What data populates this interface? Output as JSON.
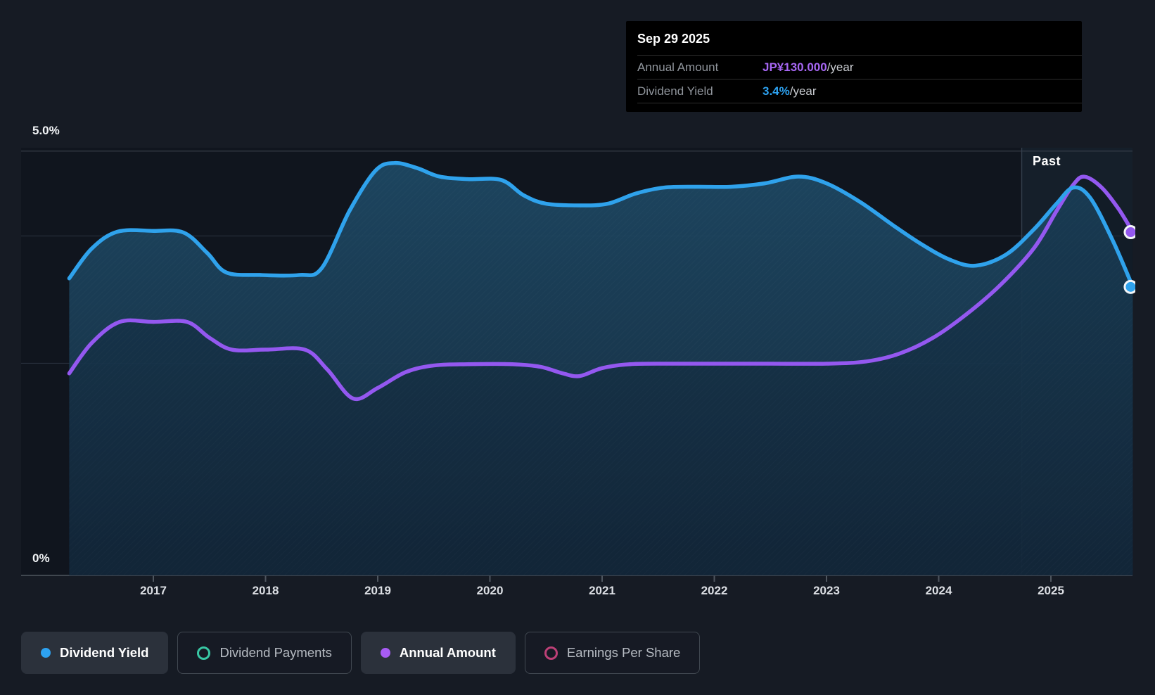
{
  "tooltip": {
    "date": "Sep 29 2025",
    "rows": [
      {
        "label": "Annual Amount",
        "value": "JP¥130.000",
        "suffix": "/year",
        "value_color": "#a767f4"
      },
      {
        "label": "Dividend Yield",
        "value": "3.4%",
        "suffix": "/year",
        "value_color": "#2da2f1"
      }
    ]
  },
  "axis": {
    "y_top_label": "5.0%",
    "y_bottom_label": "0%",
    "years": [
      "2017",
      "2018",
      "2019",
      "2020",
      "2021",
      "2022",
      "2023",
      "2024",
      "2025"
    ]
  },
  "past_label": "Past",
  "legend": [
    {
      "label": "Dividend Yield",
      "marker": "filled",
      "color": "#2da2f1",
      "active": true
    },
    {
      "label": "Dividend Payments",
      "marker": "ring",
      "color": "#38c7a4",
      "active": false
    },
    {
      "label": "Annual Amount",
      "marker": "filled",
      "color": "#a85cf5",
      "active": true
    },
    {
      "label": "Earnings Per Share",
      "marker": "ring",
      "color": "#bd4077",
      "active": false
    }
  ],
  "colors": {
    "background": "#161b24",
    "plot_background": "#10151e",
    "past_highlight": "rgba(56,90,120,0.14)",
    "blue_line": "#2fa2ec",
    "purple_line": "#9458f0",
    "fill_top": "#1e4a66",
    "fill_bottom": "#152c40",
    "gridline_major": "#3a414c",
    "gridline_minor": "#28303c",
    "baseline": "#4f565f"
  },
  "chart_data": {
    "type": "area",
    "x_axis": {
      "tick_years": [
        2017,
        2018,
        2019,
        2020,
        2021,
        2022,
        2023,
        2024,
        2025
      ],
      "x_range": [
        2015.8,
        2025.75
      ]
    },
    "y_axis": {
      "unit": "%",
      "range": [
        0,
        5
      ],
      "labeled_ticks": [
        {
          "value": 5.0,
          "label": "5.0%"
        },
        {
          "value": 0,
          "label": "0%"
        }
      ],
      "gridlines_pct": [
        5.0,
        4.0,
        2.5,
        0
      ]
    },
    "past_divider_year": 2024.74,
    "legend_position": "bottom",
    "series": [
      {
        "name": "Dividend Yield",
        "unit": "%",
        "axis": "left",
        "color": "#2fa2ec",
        "style": "line-with-area-fill",
        "points": [
          [
            2016.25,
            3.5
          ],
          [
            2016.45,
            3.85
          ],
          [
            2016.68,
            4.05
          ],
          [
            2017.0,
            4.06
          ],
          [
            2017.27,
            4.04
          ],
          [
            2017.48,
            3.8
          ],
          [
            2017.65,
            3.57
          ],
          [
            2017.95,
            3.54
          ],
          [
            2018.3,
            3.54
          ],
          [
            2018.5,
            3.62
          ],
          [
            2018.75,
            4.3
          ],
          [
            2018.98,
            4.77
          ],
          [
            2019.15,
            4.86
          ],
          [
            2019.35,
            4.8
          ],
          [
            2019.55,
            4.7
          ],
          [
            2019.8,
            4.67
          ],
          [
            2020.1,
            4.66
          ],
          [
            2020.3,
            4.48
          ],
          [
            2020.5,
            4.38
          ],
          [
            2020.8,
            4.36
          ],
          [
            2021.05,
            4.38
          ],
          [
            2021.3,
            4.5
          ],
          [
            2021.55,
            4.57
          ],
          [
            2021.85,
            4.58
          ],
          [
            2022.15,
            4.58
          ],
          [
            2022.45,
            4.62
          ],
          [
            2022.75,
            4.7
          ],
          [
            2023.0,
            4.62
          ],
          [
            2023.3,
            4.4
          ],
          [
            2023.6,
            4.12
          ],
          [
            2023.85,
            3.9
          ],
          [
            2024.1,
            3.72
          ],
          [
            2024.33,
            3.65
          ],
          [
            2024.6,
            3.78
          ],
          [
            2024.85,
            4.08
          ],
          [
            2025.05,
            4.38
          ],
          [
            2025.2,
            4.57
          ],
          [
            2025.35,
            4.45
          ],
          [
            2025.55,
            3.95
          ],
          [
            2025.73,
            3.4
          ]
        ]
      },
      {
        "name": "Annual Amount",
        "unit": "JP¥/year",
        "axis": "hidden-right",
        "color": "#9458f0",
        "style": "line",
        "scale_note": "hidden axis; JP¥130 at end aligns with 4.05% on left axis",
        "points": [
          [
            2016.25,
            76.5
          ],
          [
            2016.45,
            88
          ],
          [
            2016.7,
            96
          ],
          [
            2017.0,
            96
          ],
          [
            2017.3,
            96
          ],
          [
            2017.5,
            90
          ],
          [
            2017.7,
            85.5
          ],
          [
            2018.0,
            85.5
          ],
          [
            2018.35,
            85.5
          ],
          [
            2018.55,
            78
          ],
          [
            2018.78,
            67
          ],
          [
            2019.0,
            71
          ],
          [
            2019.25,
            77
          ],
          [
            2019.5,
            79.5
          ],
          [
            2019.8,
            80
          ],
          [
            2020.2,
            80
          ],
          [
            2020.45,
            79
          ],
          [
            2020.65,
            76.5
          ],
          [
            2020.8,
            75.5
          ],
          [
            2021.0,
            78.5
          ],
          [
            2021.25,
            80
          ],
          [
            2021.6,
            80.2
          ],
          [
            2022.0,
            80.2
          ],
          [
            2022.5,
            80.2
          ],
          [
            2023.0,
            80.2
          ],
          [
            2023.35,
            81
          ],
          [
            2023.65,
            84
          ],
          [
            2023.95,
            90
          ],
          [
            2024.25,
            99
          ],
          [
            2024.55,
            110
          ],
          [
            2024.85,
            124
          ],
          [
            2025.05,
            138
          ],
          [
            2025.2,
            148
          ],
          [
            2025.3,
            151
          ],
          [
            2025.45,
            147
          ],
          [
            2025.6,
            139
          ],
          [
            2025.73,
            130
          ]
        ]
      }
    ],
    "end_markers": [
      {
        "series": "Annual Amount",
        "x": 2025.73,
        "value": 130
      },
      {
        "series": "Dividend Yield",
        "x": 2025.73,
        "value": 3.4
      }
    ]
  }
}
